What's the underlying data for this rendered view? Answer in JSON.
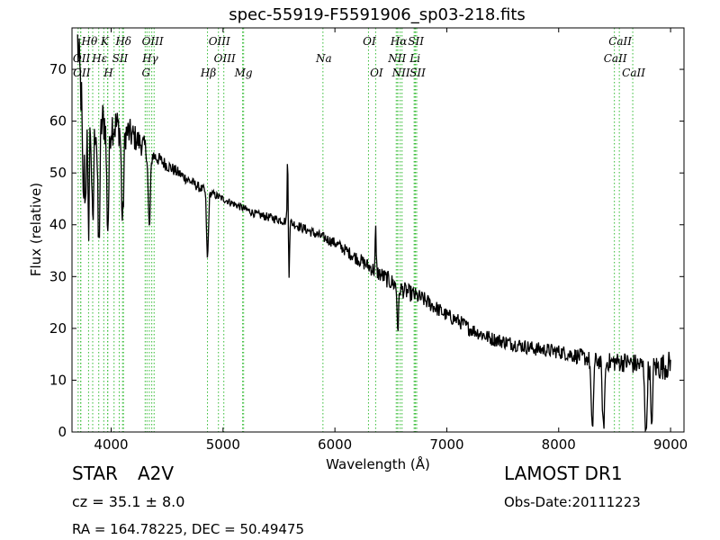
{
  "chart_data": {
    "type": "line",
    "title": "spec-55919-F5591906_sp03-218.fits",
    "xlabel": "Wavelength (Å)",
    "ylabel": "Flux (relative)",
    "xlim": [
      3650,
      9120
    ],
    "ylim": [
      0,
      78
    ],
    "xticks": [
      4000,
      5000,
      6000,
      7000,
      8000,
      9000
    ],
    "yticks": [
      0,
      10,
      20,
      30,
      40,
      50,
      60,
      70
    ],
    "grid": false,
    "line_color": "#000000",
    "marker_color": "#33bb33",
    "continuum": [
      [
        3700,
        75
      ],
      [
        3730,
        66
      ],
      [
        3760,
        63
      ],
      [
        3800,
        61
      ],
      [
        3850,
        60
      ],
      [
        3900,
        60
      ],
      [
        3950,
        60
      ],
      [
        4000,
        59.5
      ],
      [
        4100,
        58.5
      ],
      [
        4200,
        57
      ],
      [
        4300,
        55
      ],
      [
        4400,
        53
      ],
      [
        4500,
        51.5
      ],
      [
        4600,
        50
      ],
      [
        4700,
        48.5
      ],
      [
        4800,
        47
      ],
      [
        4900,
        46
      ],
      [
        5000,
        45
      ],
      [
        5100,
        44
      ],
      [
        5200,
        43
      ],
      [
        5300,
        42
      ],
      [
        5400,
        41.5
      ],
      [
        5500,
        41
      ],
      [
        5600,
        40.5
      ],
      [
        5700,
        39.5
      ],
      [
        5800,
        38.5
      ],
      [
        5900,
        37.5
      ],
      [
        6000,
        36.5
      ],
      [
        6100,
        35
      ],
      [
        6200,
        33.5
      ],
      [
        6300,
        32
      ],
      [
        6400,
        30.5
      ],
      [
        6500,
        29
      ],
      [
        6600,
        27.5
      ],
      [
        6700,
        26.5
      ],
      [
        6800,
        25.5
      ],
      [
        6900,
        24
      ],
      [
        7000,
        22.5
      ],
      [
        7100,
        21.5
      ],
      [
        7200,
        20
      ],
      [
        7300,
        19
      ],
      [
        7400,
        18
      ],
      [
        7500,
        17.5
      ],
      [
        7600,
        17
      ],
      [
        7700,
        16.5
      ],
      [
        7800,
        16
      ],
      [
        7900,
        15.8
      ],
      [
        8000,
        15.5
      ],
      [
        8100,
        15
      ],
      [
        8200,
        14.5
      ],
      [
        8300,
        14
      ],
      [
        8400,
        13.5
      ],
      [
        8500,
        13.5
      ],
      [
        8600,
        13.5
      ],
      [
        8700,
        13
      ],
      [
        8800,
        12.5
      ],
      [
        8900,
        12.5
      ],
      [
        9000,
        13
      ]
    ],
    "noise": [
      [
        3700,
        8
      ],
      [
        4000,
        6
      ],
      [
        4400,
        2
      ],
      [
        5000,
        1
      ],
      [
        6000,
        1.5
      ],
      [
        6500,
        2.5
      ],
      [
        7000,
        2
      ],
      [
        7500,
        2
      ],
      [
        8000,
        2
      ],
      [
        8400,
        2.5
      ],
      [
        8700,
        3
      ],
      [
        9000,
        4
      ]
    ],
    "absorption": [
      {
        "x": 3750,
        "depth": 20,
        "width": 10
      },
      {
        "x": 3770,
        "depth": 18,
        "width": 9
      },
      {
        "x": 3797,
        "depth": 22,
        "width": 10
      },
      {
        "x": 3835,
        "depth": 22,
        "width": 12
      },
      {
        "x": 3889,
        "depth": 24,
        "width": 14
      },
      {
        "x": 3970,
        "depth": 20,
        "width": 14
      },
      {
        "x": 4102,
        "depth": 18,
        "width": 14
      },
      {
        "x": 4341,
        "depth": 15,
        "width": 14
      },
      {
        "x": 4861,
        "depth": 13,
        "width": 12
      },
      {
        "x": 6563,
        "depth": 8,
        "width": 10
      },
      {
        "x": 8300,
        "depth": 14,
        "width": 14
      },
      {
        "x": 8400,
        "depth": 13,
        "width": 14
      },
      {
        "x": 8780,
        "depth": 14,
        "width": 12
      },
      {
        "x": 8830,
        "depth": 13,
        "width": 10
      }
    ],
    "emission": [
      {
        "x": 5577,
        "height": 12,
        "width": 6
      },
      {
        "x": 5590,
        "depth": 10,
        "width": 6
      },
      {
        "x": 6364,
        "height": 8,
        "width": 6
      }
    ],
    "line_markers": [
      {
        "label": "Hθ",
        "x": 3798,
        "row": 1
      },
      {
        "label": "K",
        "x": 3934,
        "row": 1
      },
      {
        "label": "Hδ",
        "x": 4102,
        "row": 1
      },
      {
        "label": "OIII",
        "x": 4363,
        "row": 1
      },
      {
        "label": "OIII",
        "x": 4959,
        "row": 1
      },
      {
        "label": "OI",
        "x": 6300,
        "row": 1
      },
      {
        "label": "Hα",
        "x": 6563,
        "row": 1
      },
      {
        "label": "SII",
        "x": 6716,
        "row": 1
      },
      {
        "label": "CaII",
        "x": 8542,
        "row": 1
      },
      {
        "label": "OII",
        "x": 3727,
        "row": 2
      },
      {
        "label": "Hε",
        "x": 3889,
        "row": 2
      },
      {
        "label": "SII",
        "x": 4072,
        "row": 2
      },
      {
        "label": "Hγ",
        "x": 4341,
        "row": 2
      },
      {
        "label": "OIII",
        "x": 5007,
        "row": 2
      },
      {
        "label": "Na",
        "x": 5893,
        "row": 2
      },
      {
        "label": "NII",
        "x": 6548,
        "row": 2
      },
      {
        "label": "Li",
        "x": 6708,
        "row": 2
      },
      {
        "label": "CaII",
        "x": 8498,
        "row": 2
      },
      {
        "label": "OII",
        "x": 3729,
        "row": 3
      },
      {
        "label": "H",
        "x": 3968,
        "row": 3
      },
      {
        "label": "G",
        "x": 4304,
        "row": 3
      },
      {
        "label": "Hβ",
        "x": 4861,
        "row": 3
      },
      {
        "label": "Mg",
        "x": 5175,
        "row": 3
      },
      {
        "label": "OI",
        "x": 6364,
        "row": 3
      },
      {
        "label": "NII",
        "x": 6583,
        "row": 3
      },
      {
        "label": "SII",
        "x": 6731,
        "row": 3
      },
      {
        "label": "CaII",
        "x": 8662,
        "row": 3
      }
    ],
    "extra_marker_lines": [
      3705,
      3835,
      3970,
      4026,
      4110,
      4320,
      4384,
      5184,
      6560,
      6600,
      6720
    ]
  },
  "footer": {
    "class_label": "STAR",
    "subclass": "A2V",
    "survey": "LAMOST DR1",
    "cz": "cz = 35.1 ± 8.0",
    "obs_date": "Obs-Date:20111223",
    "radec": "RA = 164.78225, DEC = 50.49475"
  }
}
